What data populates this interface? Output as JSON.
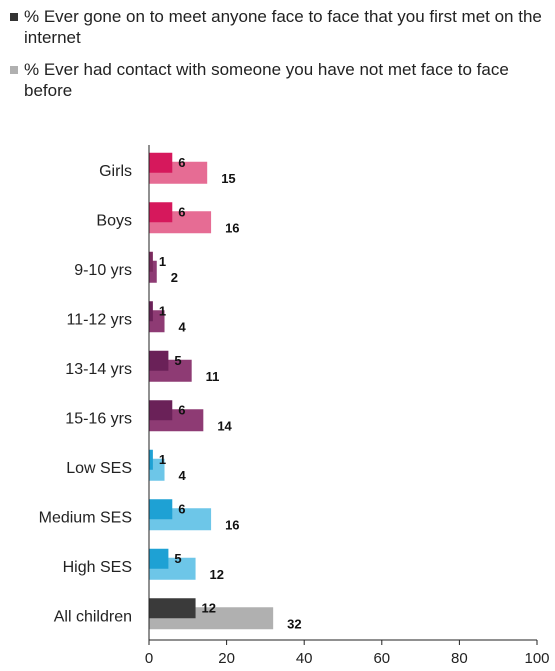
{
  "chart_data": {
    "type": "bar",
    "orientation": "horizontal",
    "categories": [
      "Girls",
      "Boys",
      "9-10 yrs",
      "11-12 yrs",
      "13-14 yrs",
      "15-16 yrs",
      "Low SES",
      "Medium SES",
      "High SES",
      "All children"
    ],
    "series": [
      {
        "name": "% Ever gone on to meet anyone face to face that you first met on the internet",
        "values": [
          6,
          6,
          1,
          1,
          5,
          6,
          1,
          6,
          5,
          12
        ],
        "colors": [
          "#d6185c",
          "#d6185c",
          "#7a2a5e",
          "#6a2158",
          "#6a2158",
          "#6a2158",
          "#1ea1d4",
          "#1ea1d4",
          "#1ea1d4",
          "#3a3a3a"
        ]
      },
      {
        "name": "% Ever had contact with someone you have not met face to face before",
        "values": [
          15,
          16,
          2,
          4,
          11,
          14,
          4,
          16,
          12,
          32
        ],
        "colors": [
          "#e66c94",
          "#e66c94",
          "#8e3b74",
          "#8e3b74",
          "#8e3b74",
          "#8e3b74",
          "#6dc6e8",
          "#6dc6e8",
          "#6dc6e8",
          "#b0b0b0"
        ]
      }
    ],
    "x_ticks": [
      0,
      20,
      40,
      60,
      80,
      100
    ],
    "xlim": [
      0,
      100
    ],
    "legend_colors": [
      "#333333",
      "#b0b0b0"
    ],
    "legend_position": "top",
    "grid": false
  }
}
